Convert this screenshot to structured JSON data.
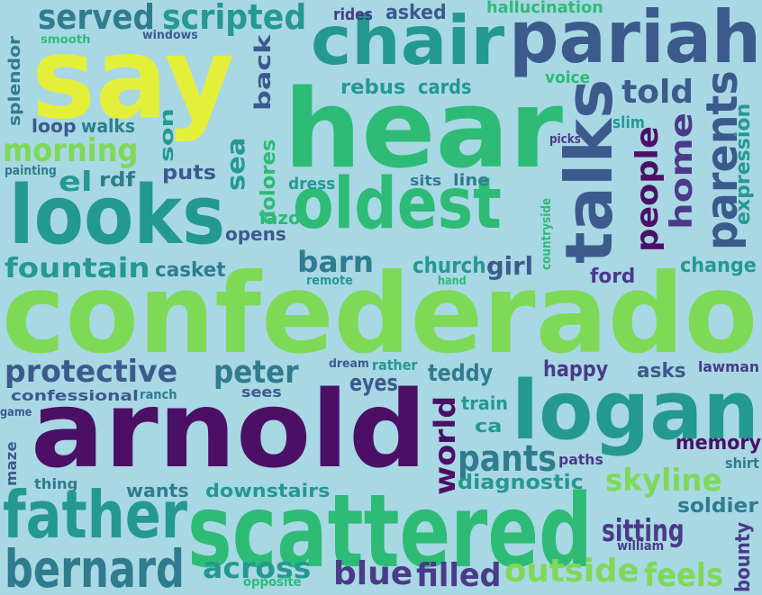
{
  "background": "#a8d8e4",
  "palette": {
    "dark_purple": "#4b1066",
    "purple": "#4a3a88",
    "indigo": "#3d5a8c",
    "teal_blue": "#2f7c8e",
    "teal": "#24998f",
    "green": "#2dbb76",
    "lime": "#7ed957",
    "yellow": "#e4ef3a"
  },
  "words": [
    {
      "text": "confederado",
      "color": "#7ed957"
    },
    {
      "text": "arnold",
      "color": "#4b1066"
    },
    {
      "text": "scattered",
      "color": "#2dbb76"
    },
    {
      "text": "say",
      "color": "#e4ef3a"
    },
    {
      "text": "hear",
      "color": "#2dbb76"
    },
    {
      "text": "logan",
      "color": "#24998f"
    },
    {
      "text": "looks",
      "color": "#24998f"
    },
    {
      "text": "oldest",
      "color": "#2dbb76"
    },
    {
      "text": "pariah",
      "color": "#3d5a8c"
    },
    {
      "text": "chair",
      "color": "#24998f"
    },
    {
      "text": "talks",
      "color": "#3d5a8c"
    },
    {
      "text": "father",
      "color": "#24998f"
    },
    {
      "text": "bernard",
      "color": "#2f7c8e"
    },
    {
      "text": "parents",
      "color": "#3d5a8c"
    },
    {
      "text": "served",
      "color": "#2f7c8e"
    },
    {
      "text": "scripted",
      "color": "#24998f"
    },
    {
      "text": "protective",
      "color": "#3d5a8c"
    },
    {
      "text": "fountain",
      "color": "#24998f"
    },
    {
      "text": "pants",
      "color": "#2f7c8e"
    },
    {
      "text": "peter",
      "color": "#2f7c8e"
    },
    {
      "text": "told",
      "color": "#3d5a8c"
    },
    {
      "text": "people",
      "color": "#4b1066"
    },
    {
      "text": "home",
      "color": "#4a3a88"
    },
    {
      "text": "morning",
      "color": "#7ed957"
    },
    {
      "text": "outside",
      "color": "#7ed957"
    },
    {
      "text": "filled",
      "color": "#4a3a88"
    },
    {
      "text": "blue",
      "color": "#4a3a88"
    },
    {
      "text": "feels",
      "color": "#7ed957"
    },
    {
      "text": "across",
      "color": "#24998f"
    },
    {
      "text": "skyline",
      "color": "#7ed957"
    },
    {
      "text": "sitting",
      "color": "#4a3a88"
    },
    {
      "text": "world",
      "color": "#4b1066"
    },
    {
      "text": "barn",
      "color": "#2f7c8e"
    },
    {
      "text": "expression",
      "color": "#24998f"
    },
    {
      "text": "girl",
      "color": "#3d5a8c"
    },
    {
      "text": "church",
      "color": "#24998f"
    },
    {
      "text": "teddy",
      "color": "#2f7c8e"
    },
    {
      "text": "eyes",
      "color": "#3d5a8c"
    },
    {
      "text": "happy",
      "color": "#4a3a88"
    },
    {
      "text": "asks",
      "color": "#3d5a8c"
    },
    {
      "text": "change",
      "color": "#24998f"
    },
    {
      "text": "ford",
      "color": "#4a3a88"
    },
    {
      "text": "memory",
      "color": "#4b1066"
    },
    {
      "text": "diagnostic",
      "color": "#24998f"
    },
    {
      "text": "soldier",
      "color": "#2f7c8e"
    },
    {
      "text": "bounty",
      "color": "#4a3a88"
    },
    {
      "text": "rebus",
      "color": "#24998f"
    },
    {
      "text": "cards",
      "color": "#24998f"
    },
    {
      "text": "back",
      "color": "#3d5a8c"
    },
    {
      "text": "asked",
      "color": "#3d5a8c"
    },
    {
      "text": "rides",
      "color": "#4a3a88"
    },
    {
      "text": "hallucination",
      "color": "#2dbb76"
    },
    {
      "text": "voice",
      "color": "#2dbb76"
    },
    {
      "text": "slim",
      "color": "#24998f"
    },
    {
      "text": "picks",
      "color": "#4a3a88"
    },
    {
      "text": "sea",
      "color": "#24998f"
    },
    {
      "text": "dolores",
      "color": "#2dbb76"
    },
    {
      "text": "dress",
      "color": "#24998f"
    },
    {
      "text": "sits",
      "color": "#2f7c8e"
    },
    {
      "text": "line",
      "color": "#2f7c8e"
    },
    {
      "text": "lazo",
      "color": "#2dbb76"
    },
    {
      "text": "opens",
      "color": "#3d5a8c"
    },
    {
      "text": "casket",
      "color": "#2f7c8e"
    },
    {
      "text": "remote",
      "color": "#24998f"
    },
    {
      "text": "hand",
      "color": "#2dbb76"
    },
    {
      "text": "countryside",
      "color": "#2dbb76"
    },
    {
      "text": "puts",
      "color": "#3d5a8c"
    },
    {
      "text": "rdf",
      "color": "#2f7c8e"
    },
    {
      "text": "el",
      "color": "#24998f"
    },
    {
      "text": "painting",
      "color": "#2f7c8e"
    },
    {
      "text": "son",
      "color": "#24998f"
    },
    {
      "text": "loop",
      "color": "#3d5a8c"
    },
    {
      "text": "walks",
      "color": "#2f7c8e"
    },
    {
      "text": "splendor",
      "color": "#2f7c8e"
    },
    {
      "text": "smooth",
      "color": "#2dbb76"
    },
    {
      "text": "windows",
      "color": "#3d5a8c"
    },
    {
      "text": "confessional",
      "color": "#3d5a8c"
    },
    {
      "text": "ranch",
      "color": "#2f7c8e"
    },
    {
      "text": "sees",
      "color": "#3d5a8c"
    },
    {
      "text": "dream",
      "color": "#3d5a8c"
    },
    {
      "text": "rather",
      "color": "#24998f"
    },
    {
      "text": "train",
      "color": "#24998f"
    },
    {
      "text": "ca",
      "color": "#24998f"
    },
    {
      "text": "lawman",
      "color": "#4a3a88"
    },
    {
      "text": "shirt",
      "color": "#2f7c8e"
    },
    {
      "text": "paths",
      "color": "#4a3a88"
    },
    {
      "text": "william",
      "color": "#4a3a88"
    },
    {
      "text": "game",
      "color": "#3d5a8c"
    },
    {
      "text": "maze",
      "color": "#3d5a8c"
    },
    {
      "text": "thing",
      "color": "#2f7c8e"
    },
    {
      "text": "wants",
      "color": "#2f7c8e"
    },
    {
      "text": "downstairs",
      "color": "#24998f"
    },
    {
      "text": "opposite",
      "color": "#2dbb76"
    }
  ]
}
